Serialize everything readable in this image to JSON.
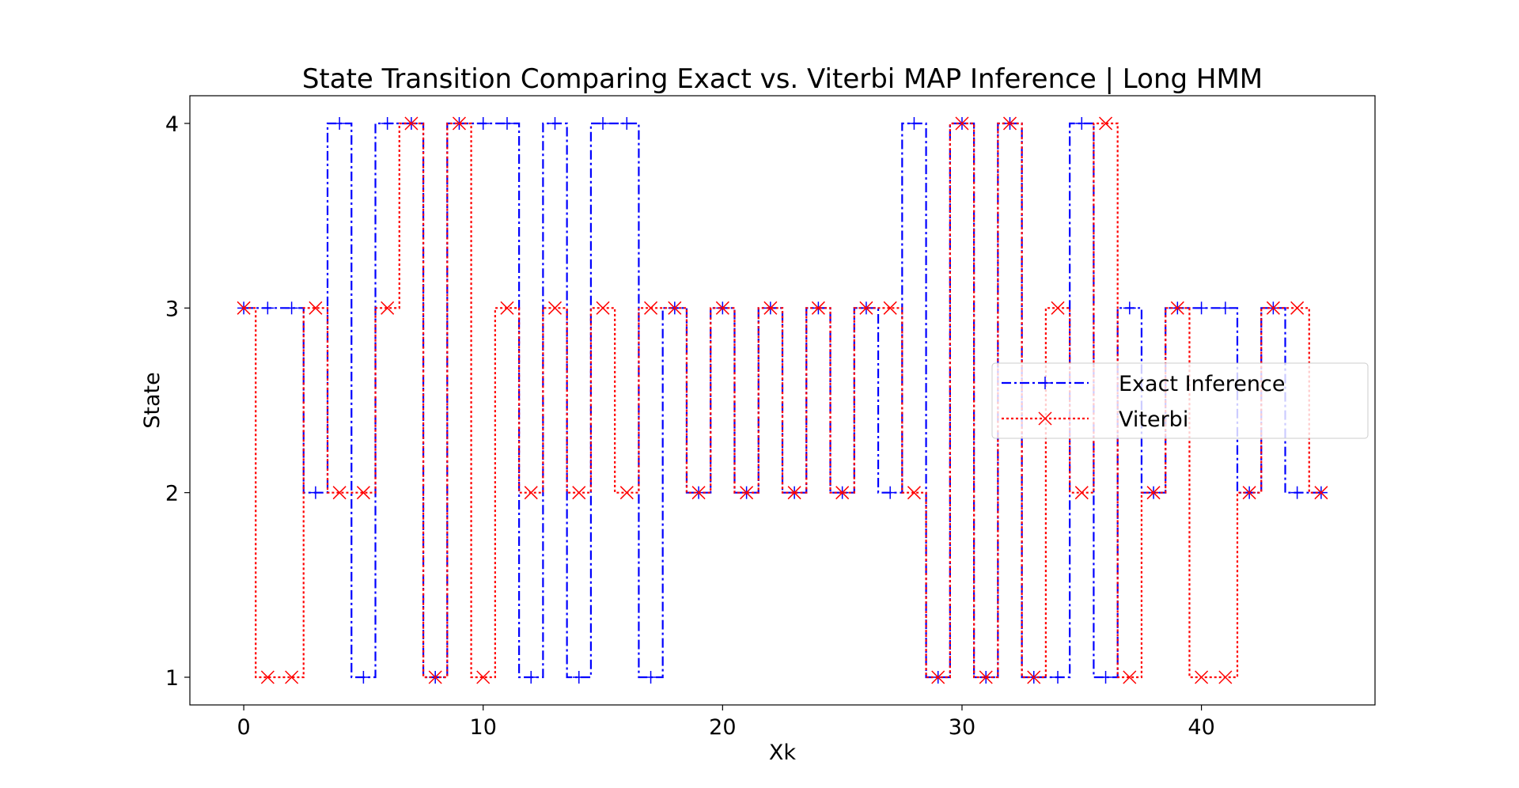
{
  "chart_data": {
    "type": "line",
    "step": "mid",
    "title": "State Transition Comparing Exact vs. Viterbi MAP Inference | Long HMM",
    "xlabel": "Xk",
    "ylabel": "State",
    "xlim": [
      -2.25,
      47.25
    ],
    "ylim": [
      0.85,
      4.15
    ],
    "xticks": [
      0,
      10,
      20,
      30,
      40
    ],
    "yticks": [
      1,
      2,
      3,
      4
    ],
    "grid": false,
    "legend_position": "center-right",
    "x": [
      0,
      1,
      2,
      3,
      4,
      5,
      6,
      7,
      8,
      9,
      10,
      11,
      12,
      13,
      14,
      15,
      16,
      17,
      18,
      19,
      20,
      21,
      22,
      23,
      24,
      25,
      26,
      27,
      28,
      29,
      30,
      31,
      32,
      33,
      34,
      35,
      36,
      37,
      38,
      39,
      40,
      41,
      42,
      43,
      44,
      45
    ],
    "series": [
      {
        "name": "Exact Inference",
        "color": "#0000ff",
        "line_style": "dash-dot",
        "marker": "plus",
        "values": [
          3,
          3,
          3,
          2,
          4,
          1,
          4,
          4,
          1,
          4,
          4,
          4,
          1,
          4,
          1,
          4,
          4,
          1,
          3,
          2,
          3,
          2,
          3,
          2,
          3,
          2,
          3,
          2,
          4,
          1,
          4,
          1,
          4,
          1,
          1,
          4,
          1,
          3,
          2,
          3,
          3,
          3,
          2,
          3,
          2,
          2
        ]
      },
      {
        "name": "Viterbi",
        "color": "#ff0000",
        "line_style": "dotted",
        "marker": "x",
        "values": [
          3,
          1,
          1,
          3,
          2,
          2,
          3,
          4,
          1,
          4,
          1,
          3,
          2,
          3,
          2,
          3,
          2,
          3,
          3,
          2,
          3,
          2,
          3,
          2,
          3,
          2,
          3,
          3,
          2,
          1,
          4,
          1,
          4,
          1,
          3,
          2,
          4,
          1,
          2,
          3,
          1,
          1,
          2,
          3,
          3,
          2
        ]
      }
    ]
  }
}
